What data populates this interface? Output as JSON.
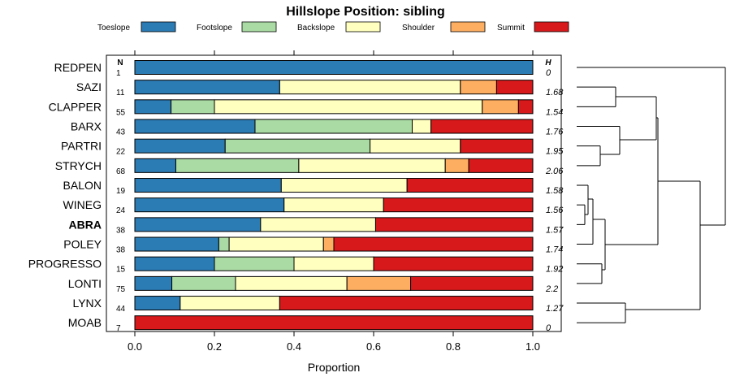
{
  "chart_data": {
    "type": "bar",
    "stacked": true,
    "orientation": "horizontal",
    "title": "Hillslope Position: sibling",
    "xlabel": "Proportion",
    "xlim": [
      0,
      1
    ],
    "xticks": [
      "0.0",
      "0.2",
      "0.4",
      "0.6",
      "0.8",
      "1.0"
    ],
    "n_header": "N",
    "h_header": "H",
    "legend_position": "top",
    "colors": {
      "Toeslope": "#2b7bb5",
      "Footslope": "#abdba4",
      "Backslope": "#ffffbf",
      "Shoulder": "#fdae61",
      "Summit": "#d7191c"
    },
    "series_names": [
      "Toeslope",
      "Footslope",
      "Backslope",
      "Shoulder",
      "Summit"
    ],
    "categories": [
      {
        "name": "REDPEN",
        "n": "1",
        "h": "0",
        "bold": false,
        "values": [
          1.0,
          0.0,
          0.0,
          0.0,
          0.0
        ]
      },
      {
        "name": "SAZI",
        "n": "11",
        "h": "1.68",
        "bold": false,
        "values": [
          0.364,
          0.0,
          0.454,
          0.091,
          0.091
        ]
      },
      {
        "name": "CLAPPER",
        "n": "55",
        "h": "1.54",
        "bold": false,
        "values": [
          0.091,
          0.109,
          0.673,
          0.091,
          0.036
        ]
      },
      {
        "name": "BARX",
        "n": "43",
        "h": "1.76",
        "bold": false,
        "values": [
          0.302,
          0.395,
          0.047,
          0.0,
          0.256
        ]
      },
      {
        "name": "PARTRI",
        "n": "22",
        "h": "1.95",
        "bold": false,
        "values": [
          0.227,
          0.364,
          0.227,
          0.0,
          0.182
        ]
      },
      {
        "name": "STRYCH",
        "n": "68",
        "h": "2.06",
        "bold": false,
        "values": [
          0.103,
          0.309,
          0.368,
          0.059,
          0.161
        ]
      },
      {
        "name": "BALON",
        "n": "19",
        "h": "1.58",
        "bold": false,
        "values": [
          0.368,
          0.0,
          0.316,
          0.0,
          0.316
        ]
      },
      {
        "name": "WINEG",
        "n": "24",
        "h": "1.56",
        "bold": false,
        "values": [
          0.375,
          0.0,
          0.25,
          0.0,
          0.375
        ]
      },
      {
        "name": "ABRA",
        "n": "38",
        "h": "1.57",
        "bold": true,
        "values": [
          0.316,
          0.0,
          0.289,
          0.0,
          0.395
        ]
      },
      {
        "name": "POLEY",
        "n": "38",
        "h": "1.74",
        "bold": false,
        "values": [
          0.211,
          0.026,
          0.237,
          0.026,
          0.5
        ]
      },
      {
        "name": "PROGRESSO",
        "n": "15",
        "h": "1.92",
        "bold": false,
        "values": [
          0.2,
          0.2,
          0.2,
          0.0,
          0.4
        ]
      },
      {
        "name": "LONTI",
        "n": "75",
        "h": "2.2",
        "bold": false,
        "values": [
          0.093,
          0.16,
          0.28,
          0.16,
          0.307
        ]
      },
      {
        "name": "LYNX",
        "n": "44",
        "h": "1.27",
        "bold": false,
        "values": [
          0.114,
          0.0,
          0.25,
          0.0,
          0.636
        ]
      },
      {
        "name": "MOAB",
        "n": "7",
        "h": "0",
        "bold": false,
        "values": [
          0.0,
          0.0,
          0.0,
          0.0,
          1.0
        ]
      }
    ]
  }
}
